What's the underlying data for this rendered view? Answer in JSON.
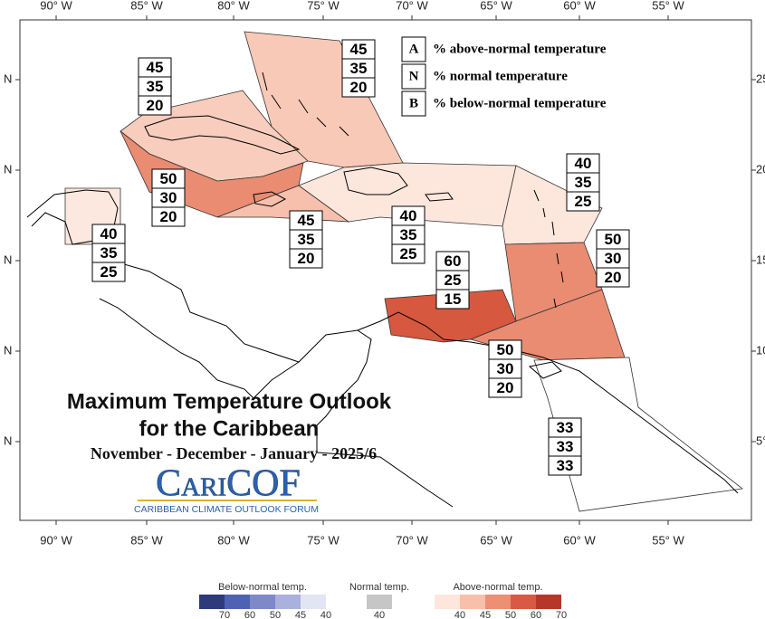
{
  "axes": {
    "top": [
      "90° W",
      "85° W",
      "80° W",
      "75° W",
      "70° W",
      "65° W",
      "60° W",
      "55° W"
    ],
    "bottom": [
      "90° W",
      "85° W",
      "80° W",
      "75° W",
      "70° W",
      "65° W",
      "60° W",
      "55° W"
    ],
    "left": [
      "N",
      "N",
      "N",
      "N",
      "N"
    ],
    "right": [
      "25",
      "20",
      "15",
      "10",
      "5°"
    ]
  },
  "legend": [
    {
      "letter": "A",
      "text": "% above-normal temperature"
    },
    {
      "letter": "N",
      "text": "% normal temperature"
    },
    {
      "letter": "B",
      "text": "% below-normal temperature"
    }
  ],
  "regions": [
    {
      "probabilities": [
        45,
        35,
        20
      ],
      "color": "#f9c9b7"
    },
    {
      "probabilities": [
        45,
        35,
        20
      ],
      "color": "#f9cdbd"
    },
    {
      "probabilities": [
        50,
        30,
        20
      ],
      "color": "#e98c72"
    },
    {
      "probabilities": [
        45,
        35,
        20
      ],
      "color": "#f6c0ad"
    },
    {
      "probabilities": [
        40,
        35,
        25
      ],
      "color": "#fde6dc"
    },
    {
      "probabilities": [
        40,
        35,
        25
      ],
      "color": "#fde8df"
    },
    {
      "probabilities": [
        40,
        35,
        25
      ],
      "color": "#fde6dc"
    },
    {
      "probabilities": [
        50,
        30,
        20
      ],
      "color": "#e98c72"
    },
    {
      "probabilities": [
        60,
        25,
        15
      ],
      "color": "#d5583f"
    },
    {
      "probabilities": [
        50,
        30,
        20
      ],
      "color": "#e98c72"
    },
    {
      "probabilities": [
        33,
        33,
        33
      ],
      "color": "#ffffff"
    }
  ],
  "title": {
    "line1": "Maximum Temperature Outlook",
    "line2": "for the Caribbean",
    "period": "November - December - January - 2025/6"
  },
  "logo": {
    "name": "CariCOF",
    "subtitle": "CARIBBEAN CLIMATE OUTLOOK FORUM"
  },
  "colorbar": [
    {
      "title": "Below-normal temp.",
      "labels": [
        70,
        60,
        50,
        45,
        40
      ],
      "colors": [
        "#2d3b7c",
        "#4d62b2",
        "#7d89c9",
        "#aab1dc",
        "#e2e5f4"
      ]
    },
    {
      "title": "Normal temp.",
      "labels": [
        40
      ],
      "colors": [
        "#c6c6c6"
      ]
    },
    {
      "title": "Above-normal temp.",
      "labels": [
        40,
        45,
        50,
        60,
        70
      ],
      "colors": [
        "#fde6dc",
        "#f8c0aa",
        "#ec8f73",
        "#d85a43",
        "#b5372a"
      ]
    }
  ]
}
